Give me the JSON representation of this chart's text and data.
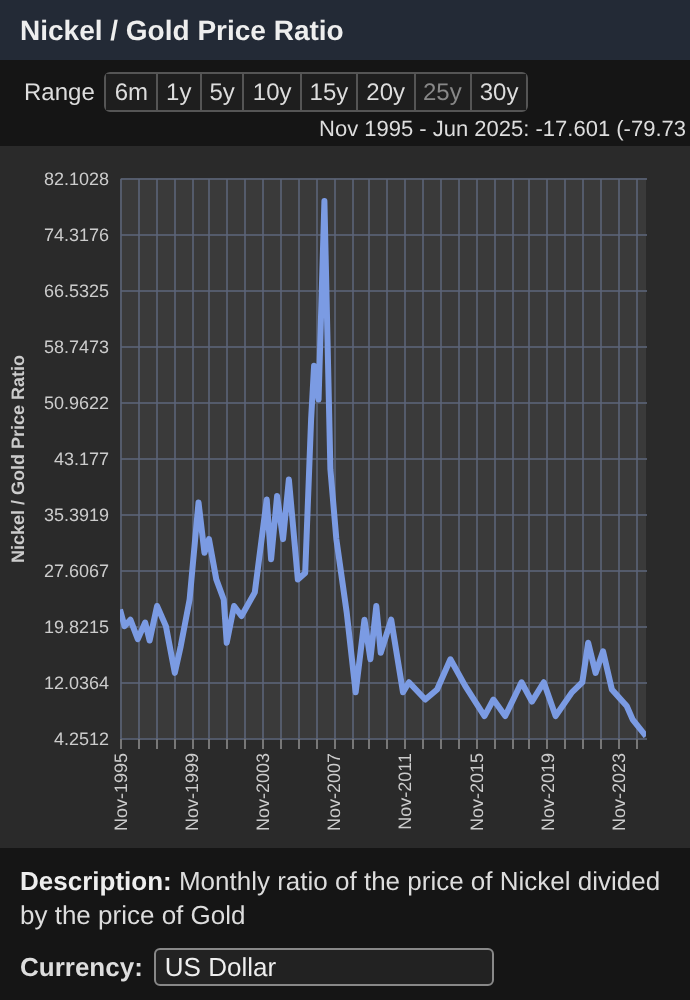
{
  "chart_data": {
    "type": "line",
    "title": "Nickel / Gold Price Ratio",
    "subtitle": "Nov 1995 - Jun 2025: -17.601 (-79.73",
    "ylabel": "Nickel / Gold Price Ratio",
    "annotations": [
      "Range",
      "6m",
      "1y",
      "5y",
      "10y",
      "15y",
      "20y",
      "25y",
      "30y",
      "Description:",
      "Monthly ratio of the price of Nickel divided by the price of Gold",
      "Currency:",
      "US Dollar"
    ],
    "x": [
      "1995-11",
      "1996-02",
      "1996-06",
      "1996-11",
      "1997-04",
      "1997-07",
      "1997-12",
      "1998-06",
      "1998-12",
      "1999-04",
      "1999-10",
      "2000-04",
      "2000-08",
      "2000-11",
      "2001-04",
      "2001-09",
      "2001-11",
      "2002-04",
      "2002-09",
      "2003-06",
      "2004-02",
      "2004-05",
      "2004-09",
      "2005-01",
      "2005-05",
      "2005-11",
      "2006-04",
      "2006-08",
      "2006-10",
      "2007-01",
      "2007-05",
      "2007-09",
      "2008-01",
      "2008-08",
      "2009-02",
      "2009-08",
      "2009-12",
      "2010-04",
      "2010-07",
      "2011-02",
      "2011-10",
      "2012-02",
      "2013-01",
      "2013-09",
      "2014-06",
      "2015-04",
      "2016-05",
      "2016-11",
      "2017-07",
      "2018-06",
      "2019-01",
      "2019-09",
      "2020-05",
      "2021-04",
      "2021-11",
      "2022-03",
      "2022-08",
      "2023-01",
      "2023-07",
      "2024-01",
      "2024-05",
      "2024-09",
      "2025-06"
    ],
    "series": [
      {
        "color": "#7b9be3",
        "values": [
          22.1,
          19.8,
          20.7,
          18.0,
          20.3,
          17.8,
          22.6,
          19.8,
          13.3,
          17.0,
          23.5,
          37.0,
          30.0,
          31.9,
          26.3,
          23.5,
          17.5,
          22.6,
          21.2,
          24.5,
          37.4,
          29.1,
          37.9,
          31.9,
          40.2,
          26.3,
          27.2,
          48.6,
          56.0,
          51.3,
          78.9,
          41.6,
          31.9,
          21.7,
          10.6,
          20.7,
          15.2,
          22.6,
          16.1,
          20.7,
          10.6,
          12.0,
          9.6,
          11.0,
          15.2,
          11.5,
          7.3,
          9.6,
          7.3,
          12.0,
          9.3,
          12.0,
          7.3,
          10.6,
          12.0,
          17.5,
          13.3,
          16.3,
          11.0,
          9.6,
          8.7,
          6.8,
          4.5
        ]
      }
    ],
    "xlim": [
      "1995-11",
      "2025-06"
    ],
    "xticks": [
      {
        "value": "1995-11",
        "label": "Nov-1995"
      },
      {
        "value": "1996-11",
        "label": null
      },
      {
        "value": "1997-11",
        "label": null
      },
      {
        "value": "1998-11",
        "label": null
      },
      {
        "value": "1999-11",
        "label": "Nov-1999"
      },
      {
        "value": "2000-11",
        "label": null
      },
      {
        "value": "2001-11",
        "label": null
      },
      {
        "value": "2002-11",
        "label": null
      },
      {
        "value": "2003-11",
        "label": "Nov-2003"
      },
      {
        "value": "2004-11",
        "label": null
      },
      {
        "value": "2005-11",
        "label": null
      },
      {
        "value": "2006-11",
        "label": null
      },
      {
        "value": "2007-11",
        "label": "Nov-2007"
      },
      {
        "value": "2008-11",
        "label": null
      },
      {
        "value": "2009-11",
        "label": null
      },
      {
        "value": "2010-11",
        "label": null
      },
      {
        "value": "2011-11",
        "label": "Nov-2011"
      },
      {
        "value": "2012-11",
        "label": null
      },
      {
        "value": "2013-11",
        "label": null
      },
      {
        "value": "2014-11",
        "label": null
      },
      {
        "value": "2015-11",
        "label": "Nov-2015"
      },
      {
        "value": "2016-11",
        "label": null
      },
      {
        "value": "2017-11",
        "label": null
      },
      {
        "value": "2018-11",
        "label": null
      },
      {
        "value": "2019-11",
        "label": "Nov-2019"
      },
      {
        "value": "2020-11",
        "label": null
      },
      {
        "value": "2021-11",
        "label": null
      },
      {
        "value": "2022-11",
        "label": null
      },
      {
        "value": "2023-11",
        "label": "Nov-2023"
      },
      {
        "value": "2024-11",
        "label": null
      }
    ],
    "ylim": [
      4.2512,
      82.1028
    ],
    "yticks": [
      4.2512,
      12.0364,
      19.8215,
      27.6067,
      35.3919,
      43.177,
      50.9622,
      58.7473,
      66.5325,
      74.3176,
      82.1028
    ],
    "grid": true
  }
}
